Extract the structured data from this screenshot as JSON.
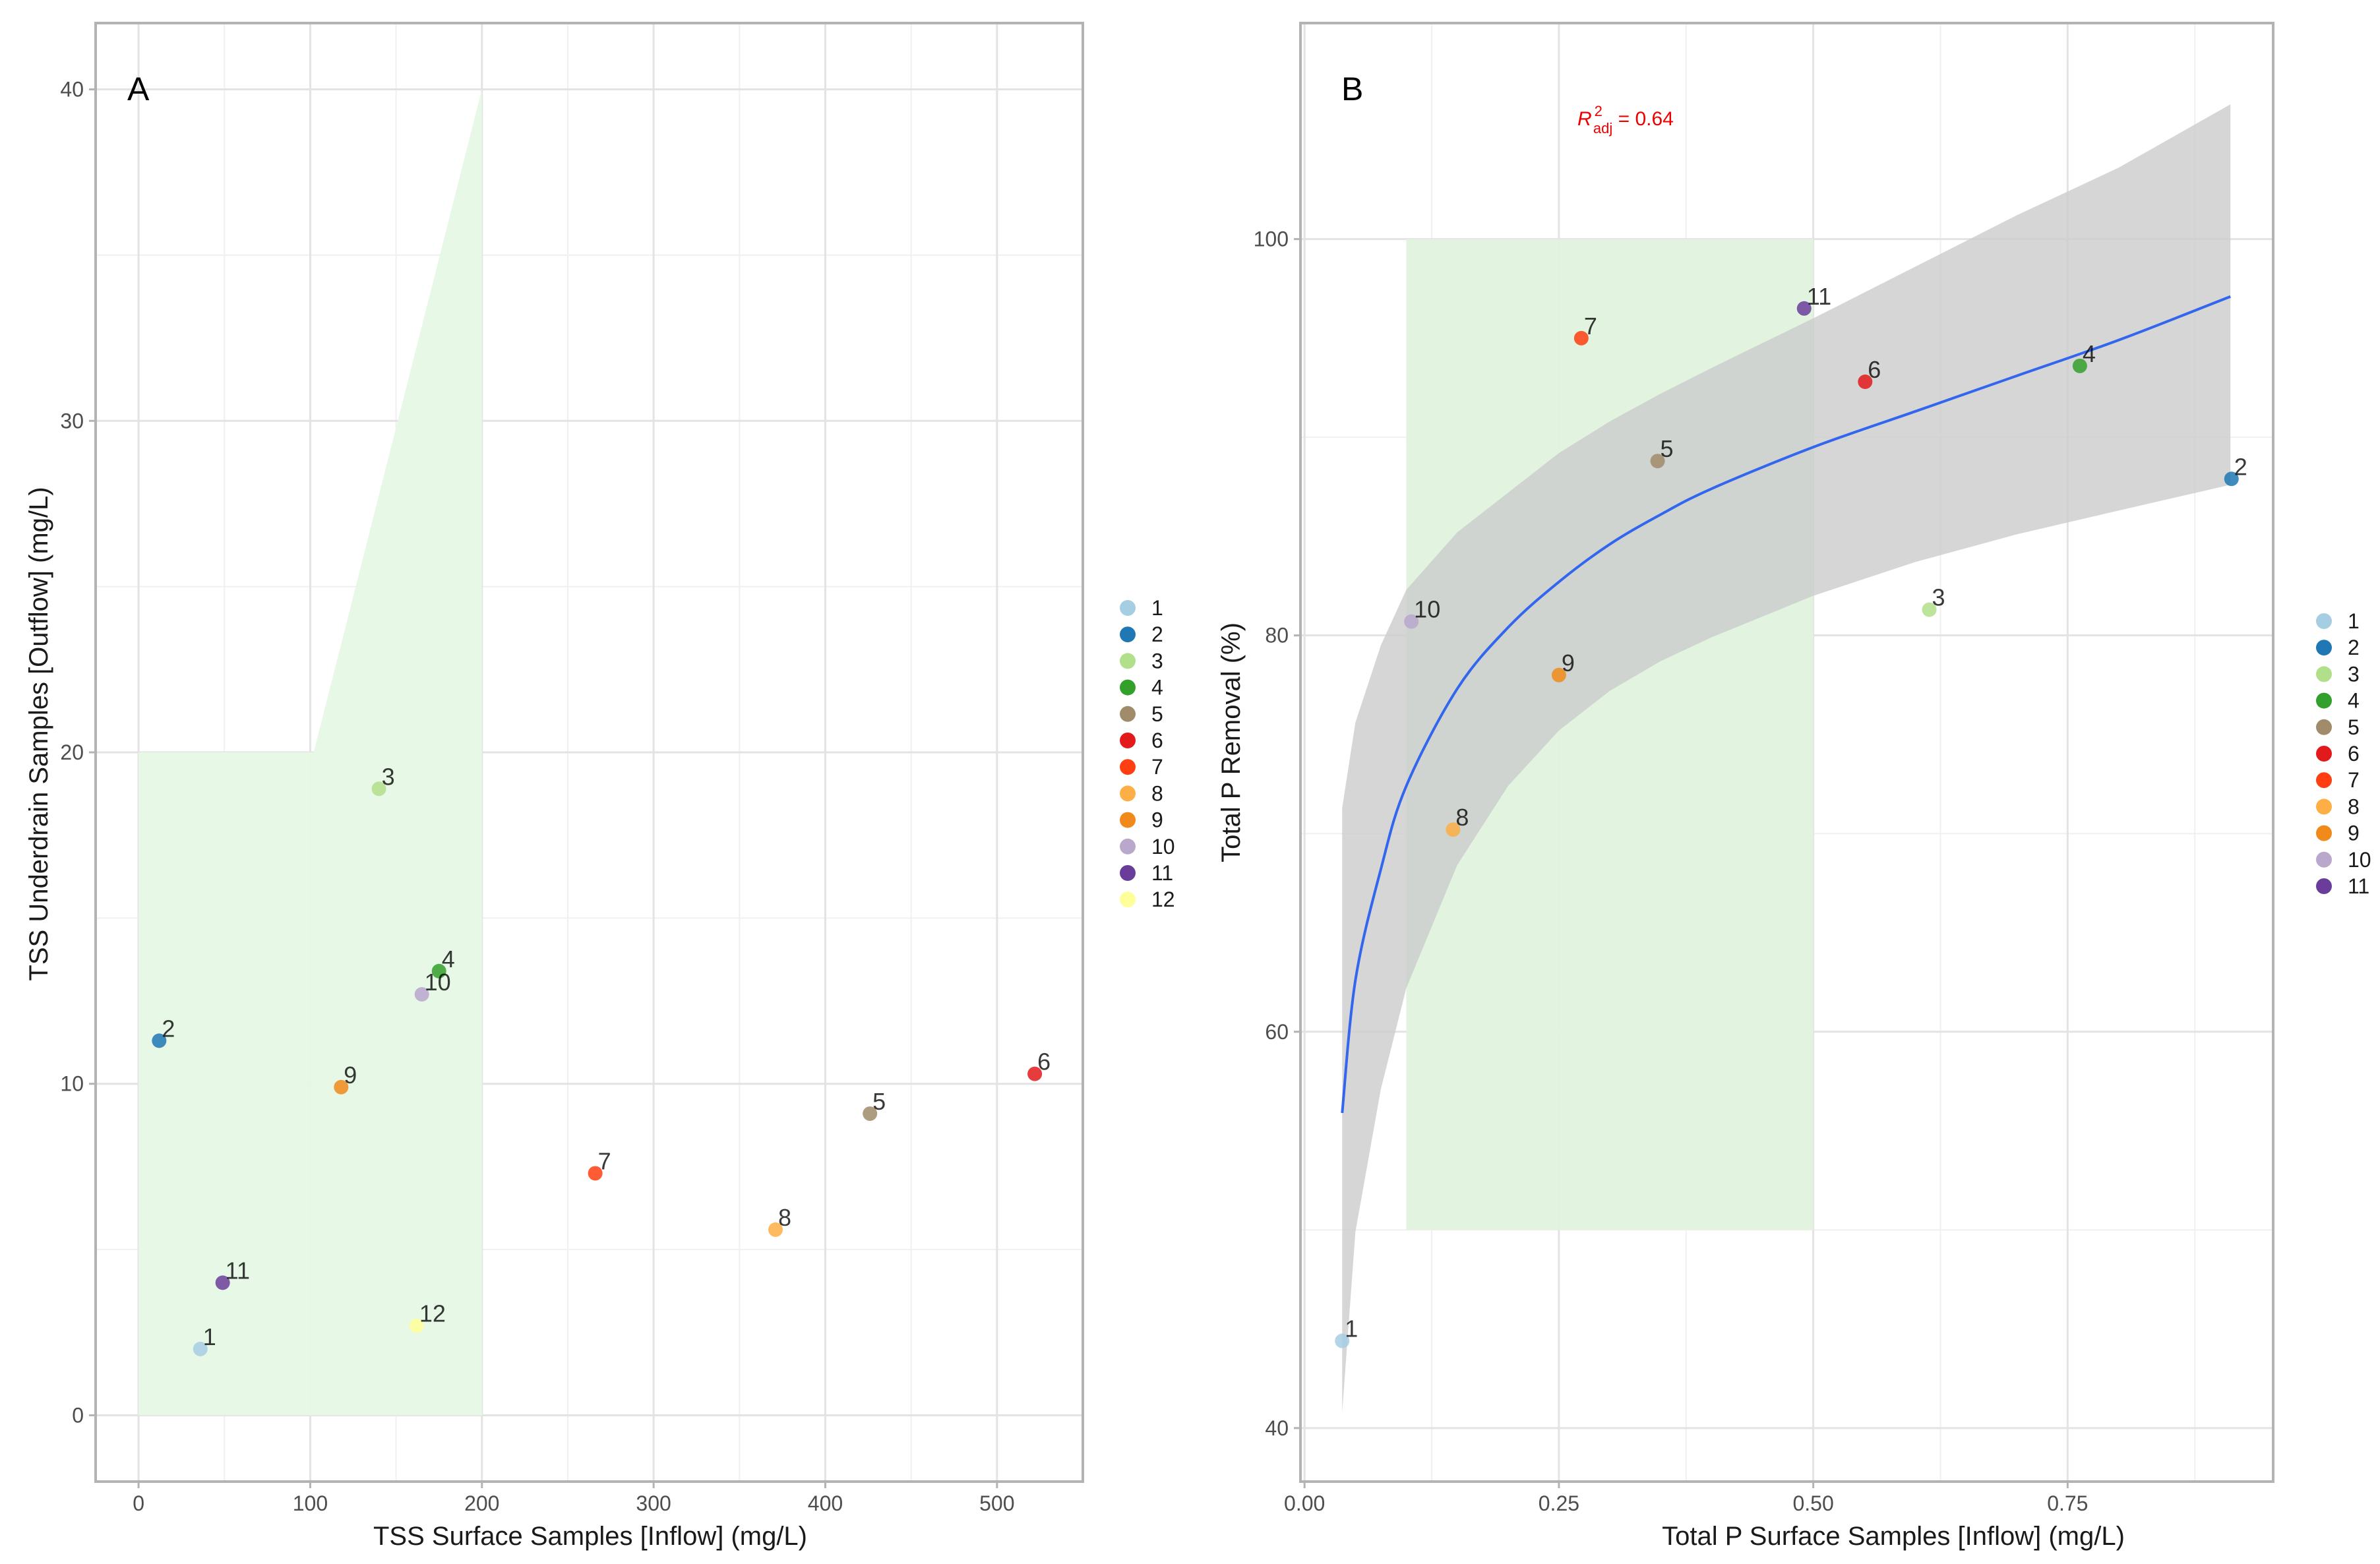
{
  "chart_data": [
    {
      "type": "scatter",
      "panel": "A",
      "xlabel": "TSS Surface Samples [Inflow] (mg/L)",
      "ylabel": "TSS Underdrain Samples [Outflow] (mg/L)",
      "xlim": [
        -25,
        550
      ],
      "ylim": [
        -2,
        42
      ],
      "xticks": [
        0,
        100,
        200,
        300,
        400,
        500
      ],
      "yticks": [
        0,
        10,
        20,
        30,
        40
      ],
      "xminor": [
        50,
        150,
        250,
        350,
        450
      ],
      "yminor": [
        5,
        15,
        25,
        35
      ],
      "shaded_region": {
        "description": "target zone",
        "polygon": [
          [
            0,
            0
          ],
          [
            200,
            0
          ],
          [
            200,
            40
          ],
          [
            102,
            20
          ],
          [
            0,
            20
          ]
        ],
        "color": "#e6f8e6"
      },
      "points": [
        {
          "label": "1",
          "x": 36,
          "y": 2.0,
          "color": "#a6cee3"
        },
        {
          "label": "2",
          "x": 12,
          "y": 11.3,
          "color": "#1f78b4"
        },
        {
          "label": "3",
          "x": 140,
          "y": 18.9,
          "color": "#b2df8a"
        },
        {
          "label": "4",
          "x": 175,
          "y": 13.4,
          "color": "#33a02c"
        },
        {
          "label": "5",
          "x": 426,
          "y": 9.1,
          "color": "#a08b6a"
        },
        {
          "label": "6",
          "x": 522,
          "y": 10.3,
          "color": "#e31a1c"
        },
        {
          "label": "7",
          "x": 266,
          "y": 7.3,
          "color": "#ff3e12"
        },
        {
          "label": "8",
          "x": 371,
          "y": 5.6,
          "color": "#fdae45"
        },
        {
          "label": "9",
          "x": 118,
          "y": 9.9,
          "color": "#f08a1a"
        },
        {
          "label": "10",
          "x": 165,
          "y": 12.7,
          "color": "#b9a7cc"
        },
        {
          "label": "11",
          "x": 49,
          "y": 4.0,
          "color": "#6a3d9a"
        },
        {
          "label": "12",
          "x": 162,
          "y": 2.7,
          "color": "#ffff99"
        }
      ],
      "legend": {
        "position": "right",
        "entries": [
          {
            "label": "1",
            "color": "#a6cee3"
          },
          {
            "label": "2",
            "color": "#1f78b4"
          },
          {
            "label": "3",
            "color": "#b2df8a"
          },
          {
            "label": "4",
            "color": "#33a02c"
          },
          {
            "label": "5",
            "color": "#a08b6a"
          },
          {
            "label": "6",
            "color": "#e31a1c"
          },
          {
            "label": "7",
            "color": "#ff3e12"
          },
          {
            "label": "8",
            "color": "#fdae45"
          },
          {
            "label": "9",
            "color": "#f08a1a"
          },
          {
            "label": "10",
            "color": "#b9a7cc"
          },
          {
            "label": "11",
            "color": "#6a3d9a"
          },
          {
            "label": "12",
            "color": "#ffff99"
          }
        ]
      }
    },
    {
      "type": "scatter",
      "panel": "B",
      "xlabel": "Total P Surface Samples [Inflow] (mg/L)",
      "ylabel": "Total P Removal (%)",
      "xlim": [
        -0.004,
        0.952
      ],
      "ylim": [
        37.3,
        110.9
      ],
      "xticks": [
        0.0,
        0.25,
        0.5,
        0.75
      ],
      "xtick_labels": [
        "0.00",
        "0.25",
        "0.50",
        "0.75"
      ],
      "yticks": [
        40,
        60,
        80,
        100
      ],
      "xminor": [
        0.125,
        0.375,
        0.625,
        0.875
      ],
      "yminor": [
        50,
        70,
        90
      ],
      "shaded_region": {
        "description": "target zone",
        "x": [
          0.1,
          0.5
        ],
        "y": [
          50,
          100
        ],
        "color": "#e0f3de"
      },
      "annotation": {
        "text": "R",
        "superscript": "2",
        "subscript": "adj",
        "value_text": " = 0.64"
      },
      "fit": {
        "model": "logarithmic",
        "color": "#3366ee",
        "x": [
          0.037,
          0.05,
          0.075,
          0.1,
          0.15,
          0.2,
          0.25,
          0.3,
          0.35,
          0.4,
          0.5,
          0.6,
          0.7,
          0.8,
          0.91
        ],
        "y": [
          55.9,
          62.6,
          68.2,
          72.4,
          77.3,
          80.4,
          82.7,
          84.6,
          86.1,
          87.4,
          89.5,
          91.3,
          93.1,
          94.9,
          97.1
        ],
        "ci_upper": [
          71.3,
          75.6,
          79.5,
          82.3,
          85.2,
          87.2,
          89.2,
          90.8,
          92.2,
          93.5,
          96.0,
          98.6,
          101.2,
          103.6,
          106.8
        ],
        "ci_lower": [
          40.8,
          49.9,
          57.1,
          62.2,
          68.4,
          72.4,
          75.2,
          77.2,
          78.7,
          79.9,
          82.0,
          83.7,
          85.1,
          86.3,
          87.6
        ],
        "ci_color": "#cccccc"
      },
      "points": [
        {
          "label": "1",
          "x": 0.037,
          "y": 44.4,
          "color": "#a6cee3"
        },
        {
          "label": "2",
          "x": 0.911,
          "y": 87.9,
          "color": "#1f78b4"
        },
        {
          "label": "3",
          "x": 0.614,
          "y": 81.3,
          "color": "#b2df8a"
        },
        {
          "label": "4",
          "x": 0.762,
          "y": 93.6,
          "color": "#33a02c"
        },
        {
          "label": "5",
          "x": 0.347,
          "y": 88.8,
          "color": "#a08b6a"
        },
        {
          "label": "6",
          "x": 0.551,
          "y": 92.8,
          "color": "#e31a1c"
        },
        {
          "label": "7",
          "x": 0.272,
          "y": 95.0,
          "color": "#ff3e12"
        },
        {
          "label": "8",
          "x": 0.146,
          "y": 70.2,
          "color": "#fdae45"
        },
        {
          "label": "9",
          "x": 0.25,
          "y": 78.0,
          "color": "#f08a1a"
        },
        {
          "label": "10",
          "x": 0.105,
          "y": 80.7,
          "color": "#b9a7cc"
        },
        {
          "label": "11",
          "x": 0.491,
          "y": 96.5,
          "color": "#6a3d9a"
        }
      ],
      "legend": {
        "position": "right",
        "entries": [
          {
            "label": "1",
            "color": "#a6cee3"
          },
          {
            "label": "2",
            "color": "#1f78b4"
          },
          {
            "label": "3",
            "color": "#b2df8a"
          },
          {
            "label": "4",
            "color": "#33a02c"
          },
          {
            "label": "5",
            "color": "#a08b6a"
          },
          {
            "label": "6",
            "color": "#e31a1c"
          },
          {
            "label": "7",
            "color": "#ff3e12"
          },
          {
            "label": "8",
            "color": "#fdae45"
          },
          {
            "label": "9",
            "color": "#f08a1a"
          },
          {
            "label": "10",
            "color": "#b9a7cc"
          },
          {
            "label": "11",
            "color": "#6a3d9a"
          }
        ]
      }
    }
  ]
}
